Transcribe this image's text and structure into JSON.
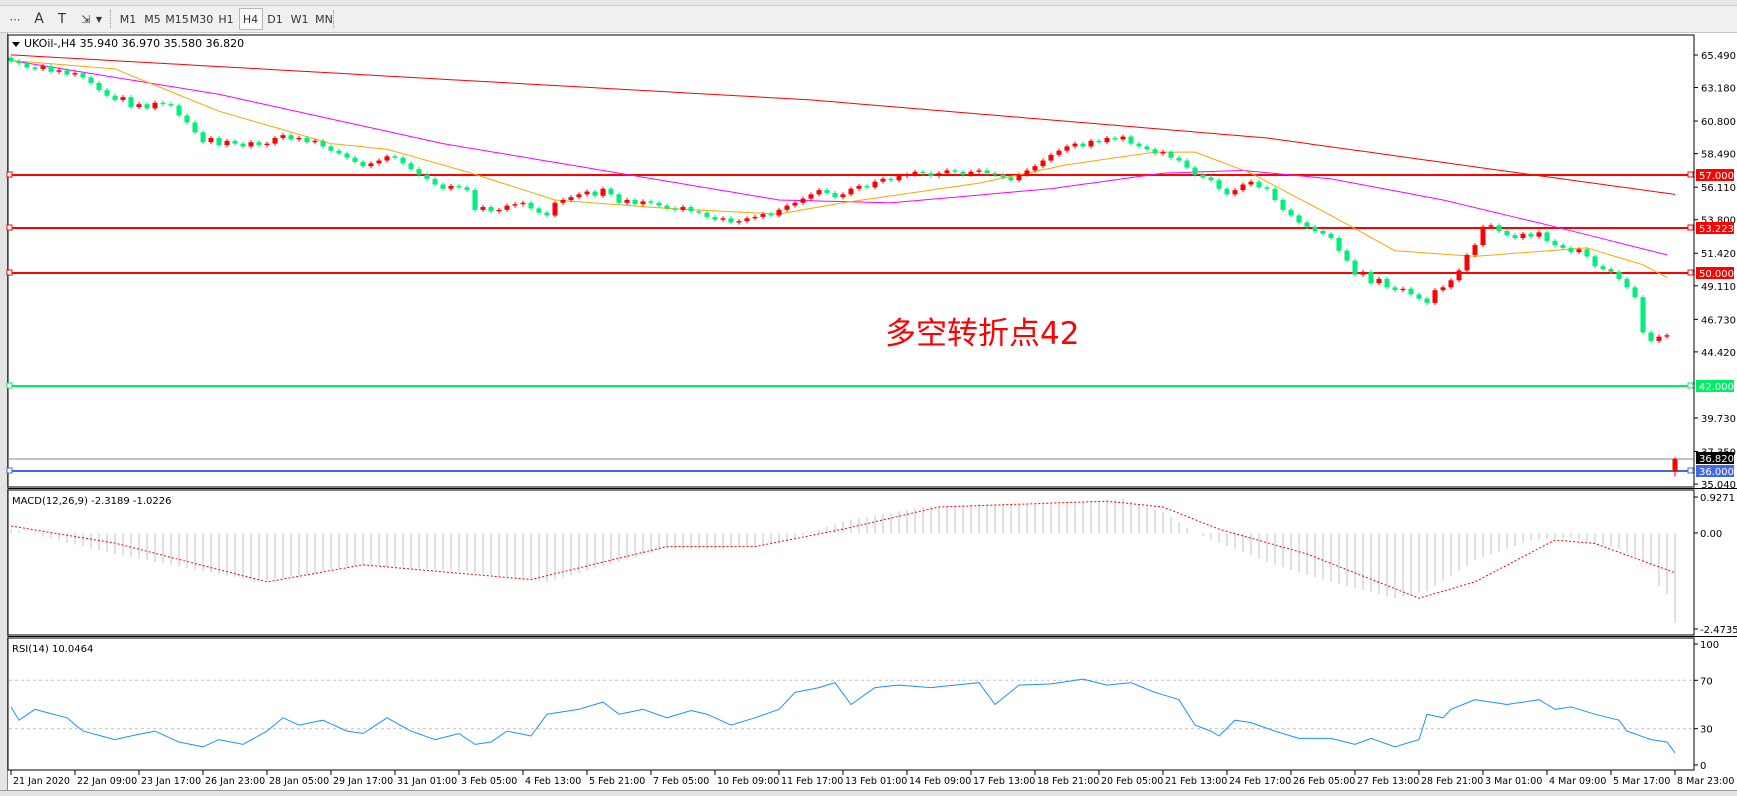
{
  "toolbar": {
    "tools": [
      {
        "name": "grid-f-icon",
        "glyph": "⋯"
      },
      {
        "name": "text-icon",
        "glyph": "A"
      },
      {
        "name": "text-label-icon",
        "glyph": "T"
      },
      {
        "name": "arrows-icon",
        "glyph": "⇲"
      }
    ],
    "timeframes": [
      "M1",
      "M5",
      "M15",
      "M30",
      "H1",
      "H4",
      "D1",
      "W1",
      "MN"
    ],
    "active_timeframe": "H4"
  },
  "chart": {
    "header": "UKOil-,H4  35.940 36.970 35.580 36.820",
    "annotation": "多空转折点42",
    "colors": {
      "bull": "#ff0000",
      "bear": "#00ee7a",
      "ma_slow": "#ff0000",
      "ma_mid": "#ff00ff",
      "ma_fast": "#ffa500",
      "macd_hist": "#c0c0c0",
      "macd_signal": "#ff0000",
      "rsi": "#1e90ff"
    }
  },
  "price_axis": [
    "65.490",
    "63.180",
    "60.800",
    "58.490",
    "56.110",
    "53.800",
    "51.420",
    "49.110",
    "46.730",
    "44.420",
    "39.730",
    "37.350",
    "35.040"
  ],
  "hlines": [
    {
      "value": 57.0,
      "label": "57.000",
      "color": "#ff0000"
    },
    {
      "value": 53.223,
      "label": "53.223",
      "color": "#ff0000"
    },
    {
      "value": 50.0,
      "label": "50.000",
      "color": "#ff0000"
    },
    {
      "value": 42.0,
      "label": "42.000",
      "color": "#00ee66"
    },
    {
      "value": 36.0,
      "label": "36.000",
      "color": "#4169e1"
    }
  ],
  "bid_line": {
    "value": 36.82,
    "label": "36.820",
    "color": "#778899"
  },
  "chart_data": {
    "type": "candlestick",
    "symbol": "UKOil-",
    "timeframe": "H4",
    "closes": [
      65.06,
      64.9,
      64.6,
      64.5,
      64.7,
      64.3,
      64.4,
      64.1,
      64.2,
      63.9,
      63.5,
      63.0,
      62.6,
      62.3,
      62.5,
      61.8,
      62.0,
      61.7,
      62.1,
      62.0,
      61.9,
      61.2,
      60.7,
      60.0,
      59.3,
      59.6,
      59.1,
      59.4,
      59.2,
      59.0,
      59.3,
      59.1,
      59.2,
      59.6,
      59.8,
      59.5,
      59.6,
      59.3,
      59.4,
      59.0,
      58.7,
      58.5,
      58.2,
      57.9,
      57.6,
      57.8,
      58.0,
      58.3,
      58.2,
      57.8,
      57.4,
      57.0,
      56.7,
      56.3,
      56.0,
      56.2,
      56.1,
      55.9,
      54.5,
      54.7,
      54.4,
      54.5,
      54.8,
      54.9,
      55.0,
      54.6,
      54.3,
      54.1,
      55.0,
      55.2,
      55.4,
      55.6,
      55.8,
      55.5,
      56.0,
      55.6,
      55.0,
      55.2,
      54.9,
      55.1,
      55.0,
      54.8,
      54.6,
      54.5,
      54.7,
      54.4,
      54.3,
      54.0,
      53.8,
      53.9,
      53.6,
      53.7,
      53.9,
      54.0,
      54.2,
      54.1,
      54.5,
      54.8,
      55.0,
      55.3,
      55.6,
      55.9,
      55.7,
      55.4,
      55.6,
      56.0,
      56.2,
      56.1,
      56.5,
      56.7,
      56.6,
      56.9,
      57.0,
      57.2,
      57.1,
      56.9,
      57.1,
      57.3,
      57.2,
      57.0,
      57.2,
      57.3,
      57.1,
      57.0,
      56.8,
      56.6,
      57.0,
      57.3,
      57.6,
      58.0,
      58.4,
      58.7,
      59.0,
      59.2,
      59.0,
      59.4,
      59.3,
      59.6,
      59.5,
      59.7,
      59.2,
      59.0,
      58.8,
      58.5,
      58.6,
      58.2,
      58.0,
      57.5,
      57.0,
      56.8,
      56.6,
      56.0,
      55.6,
      55.9,
      56.3,
      56.5,
      56.1,
      56.0,
      55.2,
      54.5,
      54.1,
      53.6,
      53.3,
      53.0,
      52.8,
      52.5,
      51.6,
      50.9,
      49.9,
      50.1,
      49.3,
      49.6,
      49.0,
      48.8,
      48.9,
      48.5,
      48.2,
      47.9,
      48.8,
      49.0,
      49.5,
      50.2,
      51.3,
      52.0,
      53.3,
      53.4,
      53.0,
      52.7,
      52.5,
      52.8,
      52.6,
      52.9,
      52.3,
      52.0,
      51.8,
      51.5,
      51.7,
      51.2,
      50.5,
      50.3,
      50.1,
      49.6,
      49.0,
      48.3,
      45.8,
      45.2,
      45.5,
      45.6
    ],
    "last_candle": {
      "open": 35.94,
      "high": 36.97,
      "low": 35.58,
      "close": 36.82
    },
    "moving_averages": [
      {
        "color": "#ff0000",
        "points": [
          [
            0,
            65.5
          ],
          [
            100,
            62.3
          ],
          [
            157,
            59.6
          ],
          [
            190,
            57.0
          ],
          [
            208,
            55.6
          ]
        ]
      },
      {
        "color": "#ff00ff",
        "points": [
          [
            0,
            65.1
          ],
          [
            26,
            62.7
          ],
          [
            54,
            59.2
          ],
          [
            75,
            57.2
          ],
          [
            96,
            55.2
          ],
          [
            110,
            55.0
          ],
          [
            130,
            56.0
          ],
          [
            144,
            57.1
          ],
          [
            154,
            57.3
          ],
          [
            165,
            56.7
          ],
          [
            179,
            55.2
          ],
          [
            193,
            53.3
          ],
          [
            207,
            51.3
          ]
        ]
      },
      {
        "color": "#ffa500",
        "points": [
          [
            0,
            65.1
          ],
          [
            13,
            64.5
          ],
          [
            26,
            61.5
          ],
          [
            40,
            59.2
          ],
          [
            47,
            58.8
          ],
          [
            57,
            57.2
          ],
          [
            68,
            55.2
          ],
          [
            82,
            54.6
          ],
          [
            96,
            54.2
          ],
          [
            104,
            55.0
          ],
          [
            121,
            56.4
          ],
          [
            132,
            57.7
          ],
          [
            143,
            58.6
          ],
          [
            148,
            58.6
          ],
          [
            155,
            57.1
          ],
          [
            165,
            54.1
          ],
          [
            173,
            51.6
          ],
          [
            183,
            51.2
          ],
          [
            197,
            51.8
          ],
          [
            204,
            50.6
          ],
          [
            207,
            49.7
          ]
        ]
      }
    ],
    "x_labels": [
      "21 Jan 2020",
      "22 Jan 09:00",
      "23 Jan 17:00",
      "26 Jan 23:00",
      "28 Jan 05:00",
      "29 Jan 17:00",
      "31 Jan 01:00",
      "3 Feb 05:00",
      "4 Feb 13:00",
      "5 Feb 21:00",
      "7 Feb 05:00",
      "10 Feb 09:00",
      "11 Feb 17:00",
      "13 Feb 01:00",
      "14 Feb 09:00",
      "17 Feb 13:00",
      "18 Feb 21:00",
      "20 Feb 05:00",
      "21 Feb 13:00",
      "24 Feb 17:00",
      "26 Feb 05:00",
      "27 Feb 13:00",
      "28 Feb 21:00",
      "3 Mar 01:00",
      "4 Mar 09:00",
      "5 Mar 17:00",
      "8 Mar 23:00"
    ],
    "ylim": [
      35.04,
      65.49
    ]
  },
  "macd": {
    "title": "MACD(12,26,9) -2.3189 -1.0226",
    "axis": [
      "0.9271",
      "0.00",
      "-2.4735"
    ],
    "hist_points": [
      [
        0,
        0.1
      ],
      [
        13,
        -0.54
      ],
      [
        31,
        -1.26
      ],
      [
        44,
        -0.82
      ],
      [
        57,
        -1.0
      ],
      [
        67,
        -1.26
      ],
      [
        82,
        -0.4
      ],
      [
        89,
        -0.4
      ],
      [
        96,
        -0.27
      ],
      [
        104,
        0.3
      ],
      [
        114,
        0.67
      ],
      [
        121,
        0.75
      ],
      [
        130,
        0.75
      ],
      [
        139,
        0.88
      ],
      [
        144,
        0.55
      ],
      [
        148,
        0
      ],
      [
        158,
        -0.82
      ],
      [
        165,
        -1.26
      ],
      [
        173,
        -1.68
      ],
      [
        177,
        -1.5
      ],
      [
        183,
        -0.7
      ],
      [
        190,
        -0.18
      ],
      [
        195,
        -0.12
      ],
      [
        201,
        -0.4
      ],
      [
        205,
        -0.85
      ],
      [
        206,
        -1.37
      ],
      [
        207,
        -1.57
      ],
      [
        208,
        -2.3189
      ]
    ],
    "signal_points": [
      [
        0,
        0.18
      ],
      [
        13,
        -0.26
      ],
      [
        32,
        -1.26
      ],
      [
        44,
        -0.82
      ],
      [
        65,
        -1.2
      ],
      [
        82,
        -0.35
      ],
      [
        93,
        -0.35
      ],
      [
        104,
        0.1
      ],
      [
        116,
        0.67
      ],
      [
        137,
        0.82
      ],
      [
        144,
        0.67
      ],
      [
        151,
        0.1
      ],
      [
        162,
        -0.54
      ],
      [
        176,
        -1.68
      ],
      [
        183,
        -1.26
      ],
      [
        193,
        -0.18
      ],
      [
        198,
        -0.27
      ],
      [
        205,
        -0.8
      ],
      [
        208,
        -1.0226
      ]
    ]
  },
  "rsi": {
    "title": "RSI(14) 10.0464",
    "axis": [
      "100",
      "70",
      "30",
      "0"
    ],
    "levels": [
      70,
      30
    ],
    "points": [
      [
        0,
        48
      ],
      [
        1,
        37
      ],
      [
        3,
        46
      ],
      [
        7,
        39
      ],
      [
        9,
        28
      ],
      [
        13,
        21
      ],
      [
        15,
        24
      ],
      [
        18,
        28
      ],
      [
        21,
        19
      ],
      [
        24,
        15
      ],
      [
        26,
        21
      ],
      [
        29,
        17
      ],
      [
        32,
        28
      ],
      [
        34,
        39
      ],
      [
        36,
        33
      ],
      [
        39,
        37
      ],
      [
        42,
        28
      ],
      [
        44,
        26
      ],
      [
        47,
        39
      ],
      [
        50,
        28
      ],
      [
        53,
        21
      ],
      [
        56,
        26
      ],
      [
        58,
        17
      ],
      [
        60,
        19
      ],
      [
        62,
        28
      ],
      [
        65,
        24
      ],
      [
        67,
        42
      ],
      [
        71,
        46
      ],
      [
        74,
        52
      ],
      [
        76,
        42
      ],
      [
        79,
        46
      ],
      [
        82,
        39
      ],
      [
        85,
        45
      ],
      [
        87,
        42
      ],
      [
        90,
        33
      ],
      [
        93,
        39
      ],
      [
        96,
        46
      ],
      [
        98,
        60
      ],
      [
        101,
        64
      ],
      [
        103,
        68
      ],
      [
        105,
        50
      ],
      [
        108,
        64
      ],
      [
        111,
        66
      ],
      [
        115,
        64
      ],
      [
        121,
        68
      ],
      [
        123,
        50
      ],
      [
        126,
        66
      ],
      [
        130,
        67
      ],
      [
        134,
        71
      ],
      [
        137,
        66
      ],
      [
        140,
        68
      ],
      [
        143,
        60
      ],
      [
        146,
        54
      ],
      [
        148,
        33
      ],
      [
        150,
        28
      ],
      [
        151,
        24
      ],
      [
        153,
        37
      ],
      [
        155,
        35
      ],
      [
        158,
        28
      ],
      [
        161,
        22
      ],
      [
        165,
        22
      ],
      [
        168,
        17
      ],
      [
        170,
        22
      ],
      [
        173,
        15
      ],
      [
        176,
        21
      ],
      [
        177,
        42
      ],
      [
        179,
        39
      ],
      [
        180,
        46
      ],
      [
        183,
        54
      ],
      [
        187,
        50
      ],
      [
        191,
        54
      ],
      [
        193,
        46
      ],
      [
        195,
        48
      ],
      [
        198,
        42
      ],
      [
        201,
        37
      ],
      [
        202,
        28
      ],
      [
        205,
        21
      ],
      [
        207,
        19
      ],
      [
        208,
        10.0464
      ]
    ]
  }
}
